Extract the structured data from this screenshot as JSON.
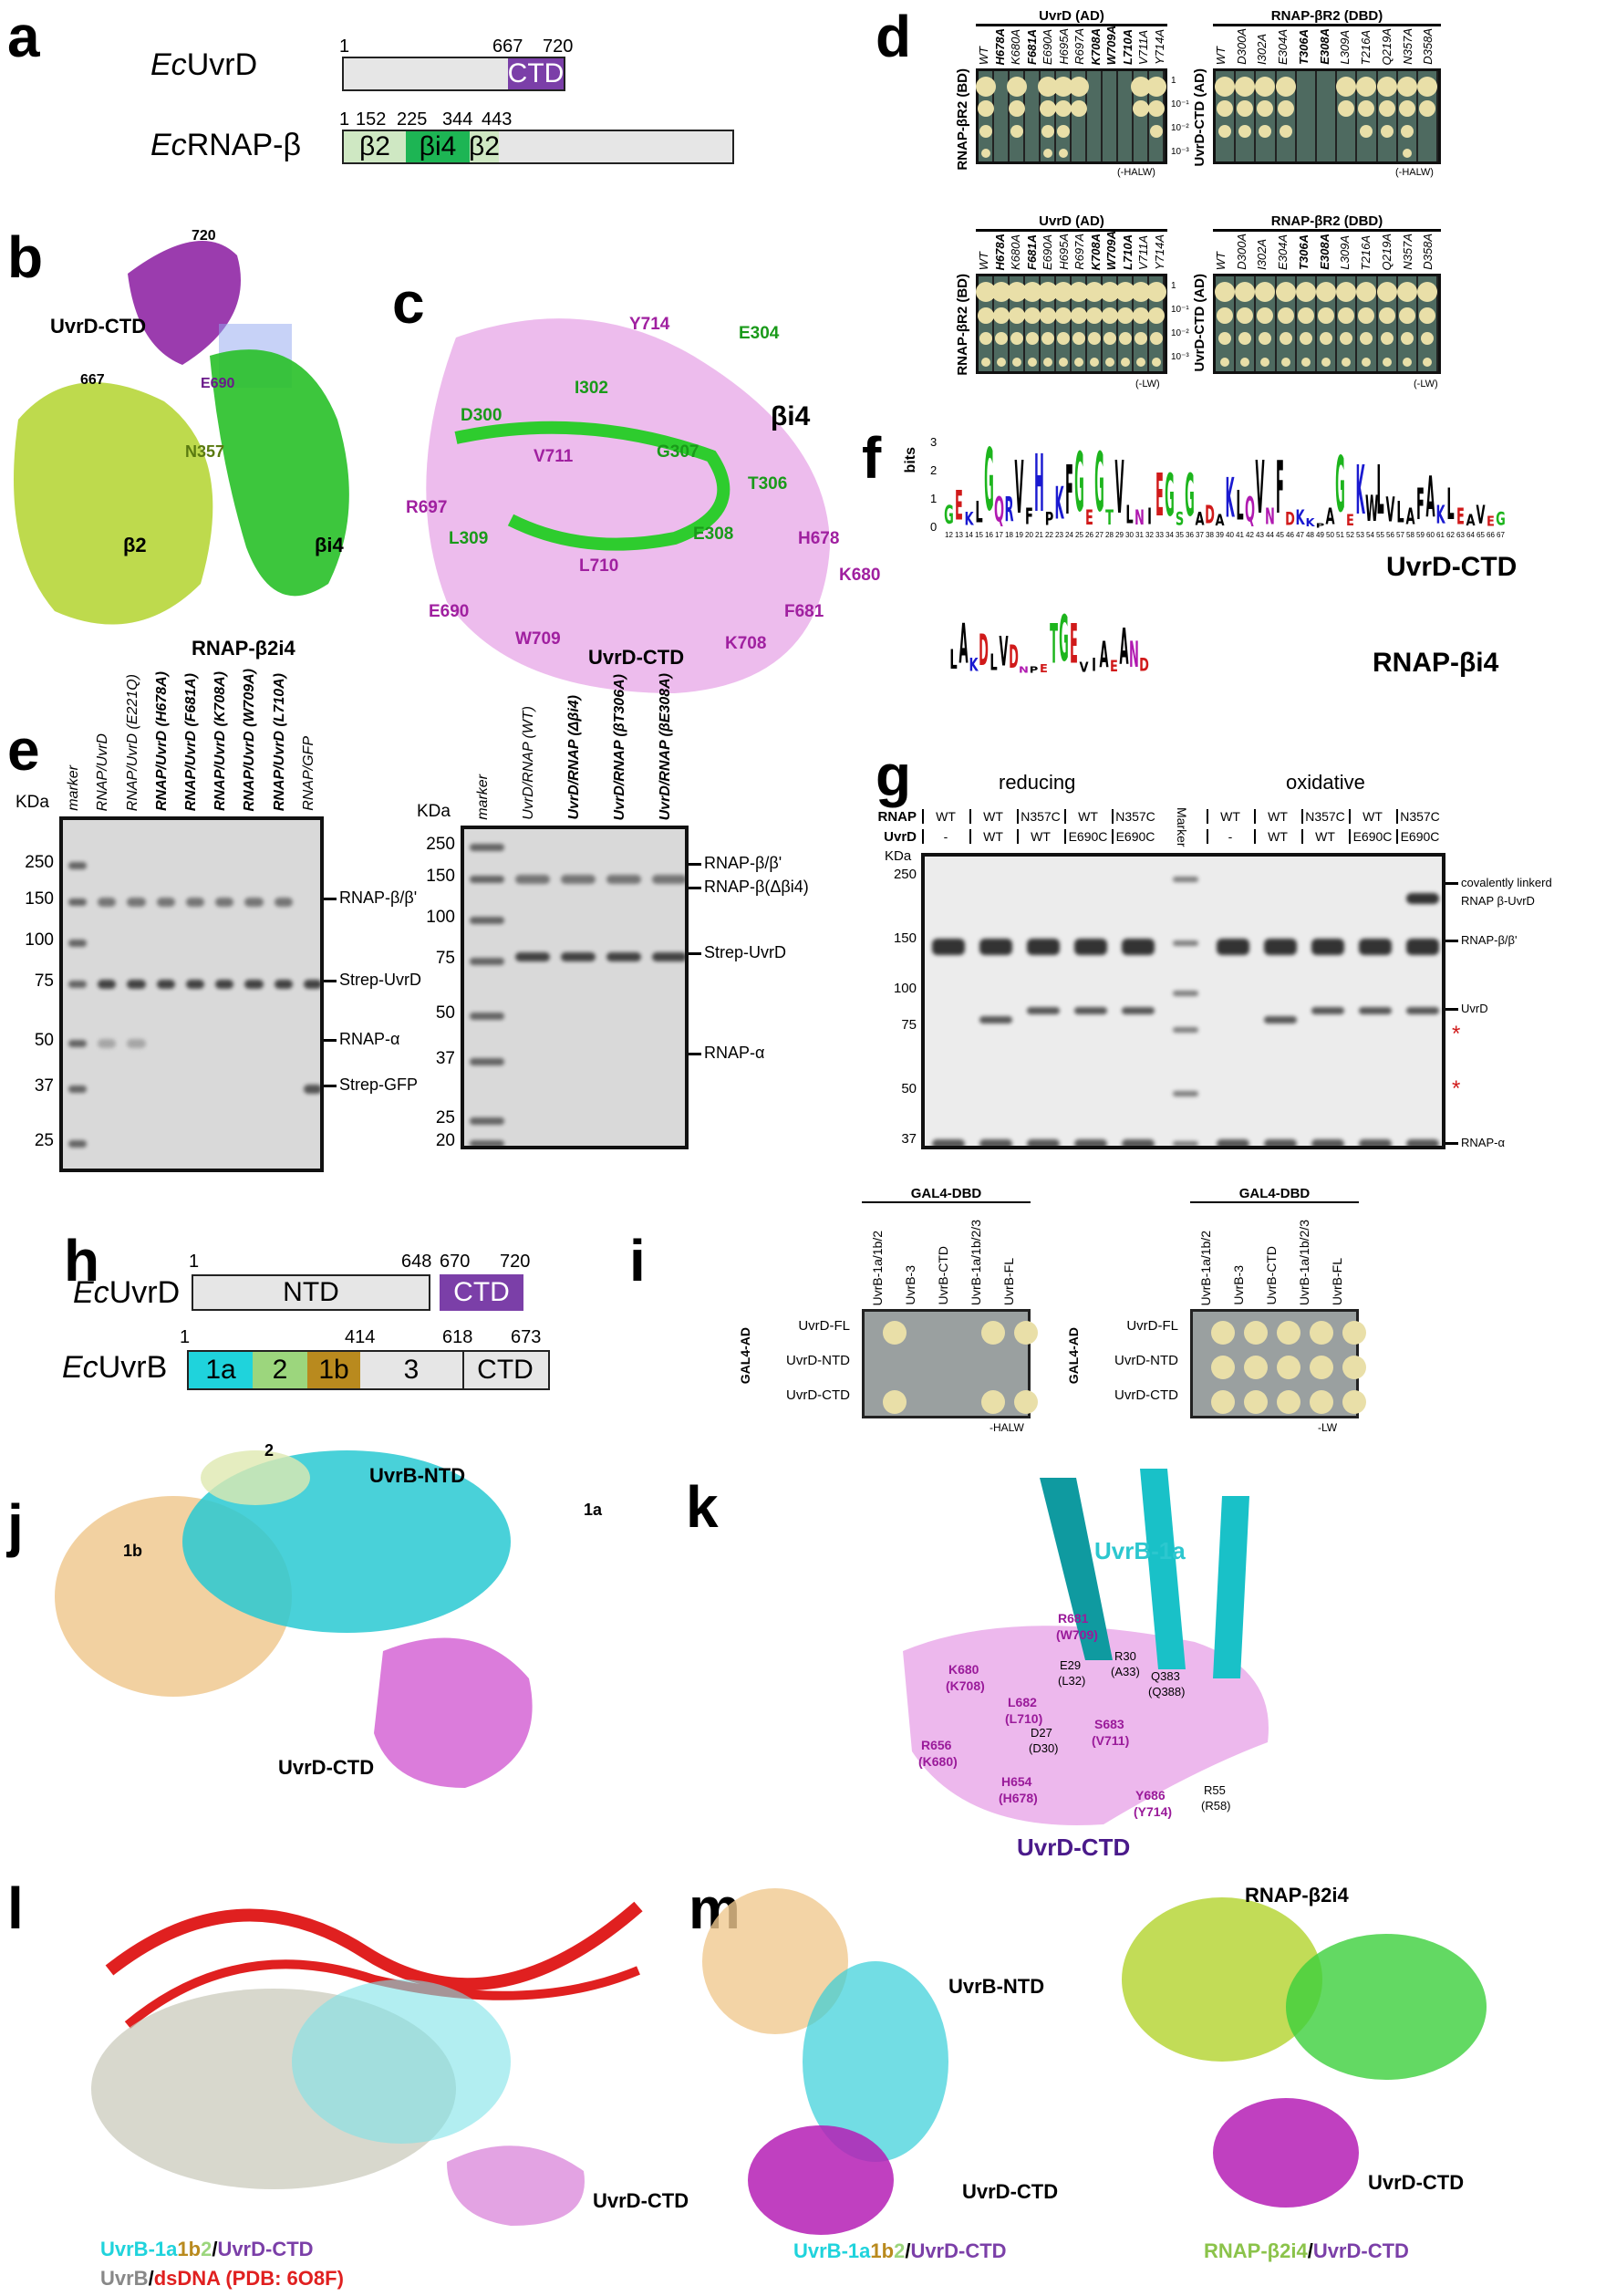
{
  "panels": [
    "a",
    "b",
    "c",
    "d",
    "e",
    "f",
    "g",
    "h",
    "i",
    "j",
    "k",
    "l",
    "m"
  ],
  "colors": {
    "uvrd_ctd": "#7b3fa8",
    "bi4": "#1db554",
    "b2": "#cfe8c3",
    "grey": "#e6e6e6",
    "cyan": "#1fd3dc",
    "green_1b2": "#9cd67d",
    "brown": "#b98a1e",
    "magenta": "#c040c0",
    "lime": "#b7d63a",
    "red": "#d92020"
  },
  "a": {
    "uvrd": {
      "label_prefix": "Ec",
      "label": "UvrD",
      "n_start": "1",
      "n_667": "667",
      "n_720": "720",
      "ctd": "CTD"
    },
    "rnap": {
      "label_prefix": "Ec",
      "label": "RNAP-β",
      "n1": "1",
      "n152": "152",
      "n225": "225",
      "n344": "344",
      "n443": "443",
      "seg1": "β2",
      "seg2": "βi4",
      "seg3": "β2"
    }
  },
  "b": {
    "labels": [
      "720",
      "UvrD-CTD",
      "667",
      "E690",
      "N357",
      "β2",
      "βi4",
      "RNAP-β2i4"
    ]
  },
  "c": {
    "labels": [
      "Y714",
      "E304",
      "I302",
      "βi4",
      "D300",
      "V711",
      "G307",
      "T306",
      "R697",
      "L309",
      "E308",
      "H678",
      "L710",
      "K680",
      "E690",
      "F681",
      "W709",
      "K708",
      "UvrD-CTD"
    ]
  },
  "d": {
    "top_left": {
      "header": "UvrD (AD)",
      "ylabel": "RNAP-βR2 (BD)",
      "lanes": [
        "WT",
        "H678A",
        "K680A",
        "F681A",
        "E690A",
        "H695A",
        "R697A",
        "K708A",
        "W709A",
        "L710A",
        "V711A",
        "Y714A"
      ],
      "bold": [
        1,
        3,
        7,
        8,
        9
      ],
      "growth": [
        4,
        0,
        3,
        0,
        4,
        4,
        2,
        0,
        0,
        0,
        2,
        3
      ]
    },
    "top_right": {
      "header": "RNAP-βR2 (DBD)",
      "ylabel": "UvrD-CTD (AD)",
      "lanes": [
        "WT",
        "D300A",
        "I302A",
        "E304A",
        "T306A",
        "E308A",
        "L309A",
        "T216A",
        "Q219A",
        "N357A",
        "D358A"
      ],
      "bold": [
        4,
        5
      ],
      "growth": [
        3,
        3,
        3,
        3,
        0,
        0,
        2,
        3,
        3,
        4,
        2
      ]
    },
    "dilutions": [
      "1",
      "10⁻¹",
      "10⁻²",
      "10⁻³"
    ],
    "top_cond": "(-HALW)",
    "bottom_cond": "(-LW)"
  },
  "e": {
    "left": {
      "kda": "KDa",
      "lanes": [
        "marker",
        "RNAP/UvrD",
        "RNAP/UvrD (E221Q)",
        "RNAP/UvrD (H678A)",
        "RNAP/UvrD (F681A)",
        "RNAP/UvrD (K708A)",
        "RNAP/UvrD (W709A)",
        "RNAP/UvrD (L710A)",
        "RNAP/GFP"
      ],
      "bold": [
        3,
        4,
        5,
        6,
        7
      ],
      "mw": [
        "250",
        "150",
        "100",
        "75",
        "50",
        "37",
        "25"
      ],
      "bands": [
        "RNAP-β/β'",
        "Strep-UvrD",
        "RNAP-α",
        "Strep-GFP"
      ]
    },
    "right": {
      "kda": "KDa",
      "lanes": [
        "marker",
        "UvrD/RNAP (WT)",
        "UvrD/RNAP (Δβi4)",
        "UvrD/RNAP (βT306A)",
        "UvrD/RNAP (βE308A)"
      ],
      "bold": [
        2,
        3,
        4
      ],
      "mw": [
        "250",
        "150",
        "100",
        "75",
        "50",
        "37",
        "25",
        "20"
      ],
      "bands": [
        "RNAP-β/β'",
        "RNAP-β(Δβi4)",
        "Strep-UvrD",
        "RNAP-α"
      ]
    }
  },
  "f": {
    "ylabel": "bits",
    "yticks": [
      "0",
      "1",
      "2",
      "3"
    ],
    "ctd_positions": [
      "12",
      "13",
      "14",
      "15",
      "16",
      "17",
      "18",
      "19",
      "20",
      "21",
      "22",
      "23",
      "24",
      "25",
      "26",
      "27",
      "28",
      "29",
      "30",
      "31",
      "32",
      "33",
      "34",
      "35",
      "36",
      "37",
      "38",
      "39",
      "40",
      "41",
      "42",
      "43",
      "44",
      "45",
      "46",
      "47",
      "48",
      "49",
      "50",
      "51",
      "52",
      "53",
      "54",
      "55",
      "56",
      "57",
      "58",
      "59",
      "60",
      "61",
      "62",
      "63",
      "64",
      "65",
      "66",
      "67"
    ],
    "ctd_letters": "GEKLGQRVFHPKFGEGTVLNIEGSGADAKLQVNFDKKPAGEKWLVLAFAKLEAVEG",
    "ctd_heights": [
      1.1,
      1.8,
      0.8,
      1.3,
      3.8,
      1.5,
      1.5,
      3.2,
      1.0,
      3.5,
      0.8,
      2.0,
      3.0,
      3.6,
      0.9,
      3.6,
      0.9,
      3.2,
      1.1,
      0.9,
      1.0,
      2.6,
      2.6,
      0.8,
      2.6,
      0.8,
      1.1,
      0.7,
      2.4,
      1.8,
      1.5,
      3.2,
      1.0,
      3.2,
      0.8,
      0.9,
      0.5,
      0.3,
      1.0,
      3.4,
      0.7,
      3.0,
      1.6,
      3.0,
      1.5,
      1.3,
      1.0,
      1.9,
      2.5,
      1.1,
      1.9,
      1.0,
      0.7,
      1.1,
      0.6,
      0.8
    ],
    "ctd_name": "UvrD-CTD",
    "bi4_letters": "LAKDLVDNPETGEVIAEAND",
    "bi4_heights": [
      1.2,
      2.4,
      0.8,
      1.9,
      1.0,
      1.8,
      1.4,
      0.4,
      0.4,
      0.5,
      2.4,
      2.8,
      2.4,
      0.6,
      0.8,
      1.6,
      0.7,
      2.2,
      1.6,
      0.8
    ],
    "bi4_name": "RNAP-βi4"
  },
  "g": {
    "cond1": "reducing",
    "cond2": "oxidative",
    "row1": "RNAP",
    "row2": "UvrD",
    "rnap": [
      "WT",
      "WT",
      "N357C",
      "WT",
      "N357C",
      "WT",
      "WT",
      "N357C",
      "WT",
      "N357C"
    ],
    "uvrd": [
      "-",
      "WT",
      "WT",
      "E690C",
      "E690C",
      "-",
      "WT",
      "WT",
      "E690C",
      "E690C"
    ],
    "marker": "Marker",
    "kda": "KDa",
    "mw": [
      "250",
      "150",
      "100",
      "75",
      "50",
      "37"
    ],
    "bands": [
      "covalently linkerd",
      "RNAP β-UvrD",
      "RNAP-β/β'",
      "UvrD",
      "RNAP-α"
    ],
    "asterisk": "*"
  },
  "h": {
    "uvrd": {
      "label_prefix": "Ec",
      "label": "UvrD",
      "n1": "1",
      "n648": "648",
      "n670": "670",
      "n720": "720",
      "ntd": "NTD",
      "ctd": "CTD"
    },
    "uvrb": {
      "label_prefix": "Ec",
      "label": "UvrB",
      "n1": "1",
      "n414": "414",
      "n618": "618",
      "n673": "673",
      "d1a": "1a",
      "d2": "2",
      "d1b": "1b",
      "d3": "3",
      "ctd": "CTD"
    }
  },
  "i": {
    "header": "GAL4-DBD",
    "ylabel": "GAL4-AD",
    "cols": [
      "UvrB-1a/1b/2",
      "UvrB-3",
      "UvrB-CTD",
      "UvrB-1a/1b/2/3",
      "UvrB-FL"
    ],
    "rows": [
      "UvrD-FL",
      "UvrD-NTD",
      "UvrD-CTD"
    ],
    "left_growth": [
      [
        1,
        0,
        0,
        1,
        1
      ],
      [
        0,
        0,
        0,
        0,
        0
      ],
      [
        1,
        0,
        0,
        1,
        1
      ]
    ],
    "right_growth": [
      [
        1,
        1,
        1,
        1,
        1
      ],
      [
        1,
        1,
        1,
        1,
        1
      ],
      [
        1,
        1,
        1,
        1,
        1
      ]
    ],
    "left_cond": "-HALW",
    "right_cond": "-LW"
  },
  "j": {
    "labels": [
      "2",
      "UvrB-NTD",
      "1a",
      "1b",
      "UvrD-CTD"
    ]
  },
  "k": {
    "title": "UvrB-1a",
    "ctd": "UvrD-CTD",
    "magenta": [
      "R681",
      "(W709)",
      "K680",
      "(K708)",
      "L682",
      "(L710)",
      "S683",
      "(V711)",
      "R656",
      "(K680)",
      "H654",
      "(H678)",
      "Y686",
      "(Y714)"
    ],
    "black": [
      "R30",
      "(A33)",
      "E29",
      "(L32)",
      "Q383",
      "(Q388)",
      "D27",
      "(D30)",
      "R55",
      "(R58)"
    ]
  },
  "l": {
    "label": "UvrD-CTD",
    "legend1": [
      "UvrB-1a",
      "1b",
      "2",
      "/",
      "UvrD-CTD"
    ],
    "legend2": [
      "UvrB",
      "/",
      "dsDNA (PDB: 6O8F)"
    ]
  },
  "m": {
    "labels": [
      "UvrB-NTD",
      "UvrD-CTD",
      "RNAP-β2i4",
      "UvrD-CTD"
    ],
    "legend1": [
      "UvrB-1a",
      "1b",
      "2",
      "/",
      "UvrD-CTD"
    ],
    "legend2": [
      "RNAP-β2i4",
      "/",
      "UvrD-CTD"
    ]
  }
}
